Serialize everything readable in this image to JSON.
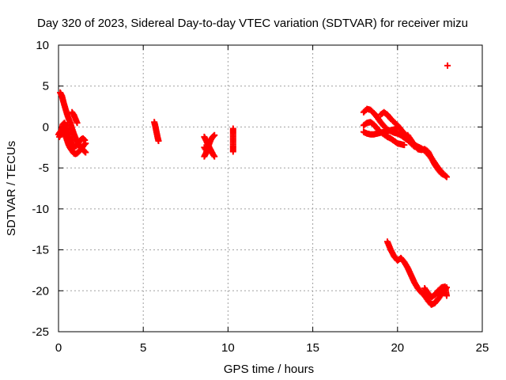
{
  "chart_data": {
    "type": "scatter",
    "title": "Day 320 of 2023, Sidereal Day-to-day VTEC variation (SDTVAR) for receiver mizu",
    "xlabel": "GPS time / hours",
    "ylabel": "SDTVAR / TECUs",
    "xlim": [
      0,
      25
    ],
    "ylim": [
      -25,
      10
    ],
    "xticks": [
      "0",
      "5",
      "10",
      "15",
      "20",
      "25"
    ],
    "yticks": [
      "10",
      "5",
      "0",
      "-5",
      "-10",
      "-15",
      "-20",
      "-25"
    ],
    "grid": true,
    "marker": "plus",
    "color": "#ff0000",
    "series": [
      {
        "name": "SDTVAR",
        "segments": [
          {
            "x": [
              0.1,
              0.2,
              0.3,
              0.4,
              0.5,
              0.6,
              0.7,
              0.8,
              0.9,
              1.0,
              1.1,
              1.2,
              1.3,
              1.4,
              1.5,
              1.6
            ],
            "y": [
              4.2,
              3.8,
              3.0,
              2.3,
              1.6,
              1.0,
              0.5,
              -0.2,
              -0.8,
              -1.3,
              -1.8,
              -2.2,
              -2.5,
              -2.7,
              -2.9,
              -3.1
            ]
          },
          {
            "x": [
              0.0,
              0.1,
              0.2,
              0.3,
              0.4,
              0.5,
              0.6,
              0.7,
              0.8,
              0.9,
              1.0,
              1.1,
              1.2,
              1.3,
              1.4,
              1.5,
              1.6
            ],
            "y": [
              -0.9,
              -0.6,
              -0.3,
              -0.5,
              -1.0,
              -1.6,
              -2.2,
              -2.6,
              -2.9,
              -3.2,
              -3.3,
              -3.2,
              -3.0,
              -2.8,
              -2.5,
              -2.2,
              -2.0
            ]
          },
          {
            "x": [
              0.05,
              0.15,
              0.25,
              0.35,
              0.45,
              0.55,
              0.65,
              0.75,
              0.85,
              0.95,
              1.05,
              1.15,
              1.25,
              1.35,
              1.45,
              1.55
            ],
            "y": [
              -1.2,
              -0.8,
              0.3,
              0.5,
              0.1,
              -0.6,
              -1.3,
              -1.9,
              -2.3,
              -2.4,
              -2.3,
              -2.0,
              -1.7,
              -1.5,
              -1.4,
              -1.6
            ]
          },
          {
            "x": [
              0.8,
              0.9,
              1.0,
              1.1
            ],
            "y": [
              1.8,
              1.5,
              1.0,
              0.5
            ]
          },
          {
            "x": [
              5.65,
              5.7,
              5.75,
              5.8,
              5.85,
              5.9
            ],
            "y": [
              0.6,
              0.2,
              -0.3,
              -0.8,
              -1.3,
              -1.7
            ]
          },
          {
            "x": [
              8.6,
              8.7,
              8.8,
              8.9,
              9.0,
              9.1,
              9.2
            ],
            "y": [
              -1.2,
              -1.6,
              -2.1,
              -2.5,
              -2.9,
              -3.3,
              -3.6
            ]
          },
          {
            "x": [
              8.6,
              8.7,
              8.8,
              8.9,
              9.0,
              9.1,
              9.2
            ],
            "y": [
              -3.6,
              -3.2,
              -2.6,
              -2.0,
              -1.5,
              -1.2,
              -1.0
            ]
          },
          {
            "x": [
              8.6,
              8.7,
              8.8
            ],
            "y": [
              -2.5,
              -2.8,
              -3.0
            ]
          },
          {
            "x": [
              10.3,
              10.3,
              10.3
            ],
            "y": [
              -0.2,
              -2.3,
              -3.0
            ]
          },
          {
            "x": [
              18.0,
              18.2,
              18.4,
              18.6,
              18.8,
              19.0,
              19.2,
              19.4,
              19.6,
              19.8,
              20.0,
              20.2,
              20.4,
              20.6,
              20.8,
              21.0
            ],
            "y": [
              1.8,
              2.2,
              2.1,
              1.7,
              1.2,
              0.6,
              0.1,
              -0.3,
              -0.5,
              -0.7,
              -0.8,
              -1.0,
              -1.3,
              -1.6,
              -2.0,
              -2.4
            ]
          },
          {
            "x": [
              18.0,
              18.2,
              18.4,
              18.6,
              18.8,
              19.0,
              19.2,
              19.4,
              19.6,
              19.8,
              20.0,
              20.2,
              20.4
            ],
            "y": [
              0.2,
              0.5,
              0.6,
              0.3,
              -0.2,
              -0.6,
              -0.9,
              -1.2,
              -1.4,
              -1.7,
              -2.0,
              -2.1,
              -2.2
            ]
          },
          {
            "x": [
              18.0,
              18.2,
              18.4,
              18.6,
              18.8,
              19.0,
              19.2,
              19.4,
              19.6,
              19.8,
              20.0
            ],
            "y": [
              -0.6,
              -0.8,
              -0.9,
              -0.9,
              -0.8,
              -0.7,
              -0.6,
              -0.5,
              -0.4,
              -0.3,
              -0.1
            ]
          },
          {
            "x": [
              19.0,
              19.2,
              19.4,
              19.6,
              19.8,
              20.0,
              20.2,
              20.4,
              20.6,
              20.8,
              21.0,
              21.2,
              21.4,
              21.6,
              21.8,
              22.0,
              22.2,
              22.4,
              22.6,
              22.8,
              22.9
            ],
            "y": [
              1.5,
              1.8,
              1.5,
              1.0,
              0.6,
              0.2,
              -0.3,
              -0.8,
              -1.3,
              -1.8,
              -2.2,
              -2.4,
              -2.6,
              -2.9,
              -3.3,
              -3.8,
              -4.4,
              -5.0,
              -5.5,
              -5.9,
              -6.1
            ]
          },
          {
            "x": [
              20.6,
              20.8,
              21.0,
              21.2,
              21.4,
              21.6,
              21.8,
              22.0,
              22.2,
              22.4,
              22.6,
              22.8
            ],
            "y": [
              -1.0,
              -1.6,
              -2.2,
              -2.7,
              -2.8,
              -2.7,
              -3.0,
              -3.8,
              -4.6,
              -5.2,
              -5.7,
              -5.9
            ]
          },
          {
            "x": [
              19.4,
              19.6,
              19.8,
              20.0,
              20.2,
              20.4,
              20.6,
              20.8,
              21.0,
              21.2,
              21.4,
              21.6,
              21.8,
              22.0,
              22.2,
              22.4,
              22.6,
              22.8,
              22.9
            ],
            "y": [
              -14.0,
              -15.0,
              -15.8,
              -16.3,
              -16.0,
              -16.5,
              -17.2,
              -18.1,
              -19.0,
              -19.7,
              -20.2,
              -20.6,
              -21.2,
              -21.7,
              -21.5,
              -21.0,
              -20.4,
              -19.9,
              -19.6
            ]
          },
          {
            "x": [
              21.6,
              21.8,
              22.0,
              22.2,
              22.4,
              22.6,
              22.8,
              22.9
            ],
            "y": [
              -19.7,
              -20.3,
              -20.8,
              -20.5,
              -20.0,
              -19.6,
              -19.5,
              -20.6
            ]
          },
          {
            "x": [
              22.95
            ],
            "y": [
              7.5
            ]
          }
        ]
      }
    ]
  }
}
